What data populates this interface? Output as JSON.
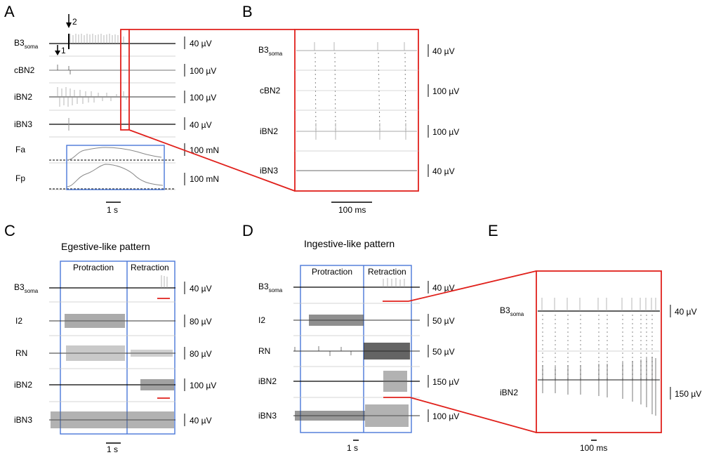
{
  "panels": [
    "A",
    "B",
    "C",
    "D",
    "E"
  ],
  "A": {
    "arrow1": "1",
    "arrow2": "2",
    "traces": [
      {
        "label": "B3",
        "sub": "soma",
        "scale": "40 µV"
      },
      {
        "label": "cBN2",
        "sub": "",
        "scale": "100 µV"
      },
      {
        "label": "iBN2",
        "sub": "",
        "scale": "100 µV"
      },
      {
        "label": "iBN3",
        "sub": "",
        "scale": "40 µV"
      },
      {
        "label": "Fa",
        "sub": "",
        "scale": "100 mN"
      },
      {
        "label": "Fp",
        "sub": "",
        "scale": "100 mN"
      }
    ],
    "timebar": "1 s"
  },
  "B": {
    "traces": [
      {
        "label": "B3",
        "sub": "soma",
        "scale": "40 µV"
      },
      {
        "label": "cBN2",
        "sub": "",
        "scale": "100 µV"
      },
      {
        "label": "iBN2",
        "sub": "",
        "scale": "100 µV"
      },
      {
        "label": "iBN3",
        "sub": "",
        "scale": "40 µV"
      }
    ],
    "timebar": "100 ms"
  },
  "C": {
    "title": "Egestive-like pattern",
    "phase1": "Protraction",
    "phase2": "Retraction",
    "traces": [
      {
        "label": "B3",
        "sub": "soma",
        "scale": "40 µV"
      },
      {
        "label": "I2",
        "sub": "",
        "scale": "80 µV"
      },
      {
        "label": "RN",
        "sub": "",
        "scale": "80 µV"
      },
      {
        "label": "iBN2",
        "sub": "",
        "scale": "100 µV"
      },
      {
        "label": "iBN3",
        "sub": "",
        "scale": "40 µV"
      }
    ],
    "timebar": "1 s"
  },
  "D": {
    "title": "Ingestive-like pattern",
    "phase1": "Protraction",
    "phase2": "Retraction",
    "traces": [
      {
        "label": "B3",
        "sub": "soma",
        "scale": "40 µV"
      },
      {
        "label": "I2",
        "sub": "",
        "scale": "50 µV"
      },
      {
        "label": "RN",
        "sub": "",
        "scale": "50 µV"
      },
      {
        "label": "iBN2",
        "sub": "",
        "scale": "150 µV"
      },
      {
        "label": "iBN3",
        "sub": "",
        "scale": "100 µV"
      }
    ],
    "timebar": "1 s"
  },
  "E": {
    "traces": [
      {
        "label": "B3",
        "sub": "soma",
        "scale": "40 µV"
      },
      {
        "label": "iBN2",
        "sub": "",
        "scale": "150 µV"
      }
    ],
    "timebar": "100 ms"
  },
  "colors": {
    "highlight_box": "#e0201b",
    "phase_box": "#4a78d8",
    "trace": "#222222"
  }
}
